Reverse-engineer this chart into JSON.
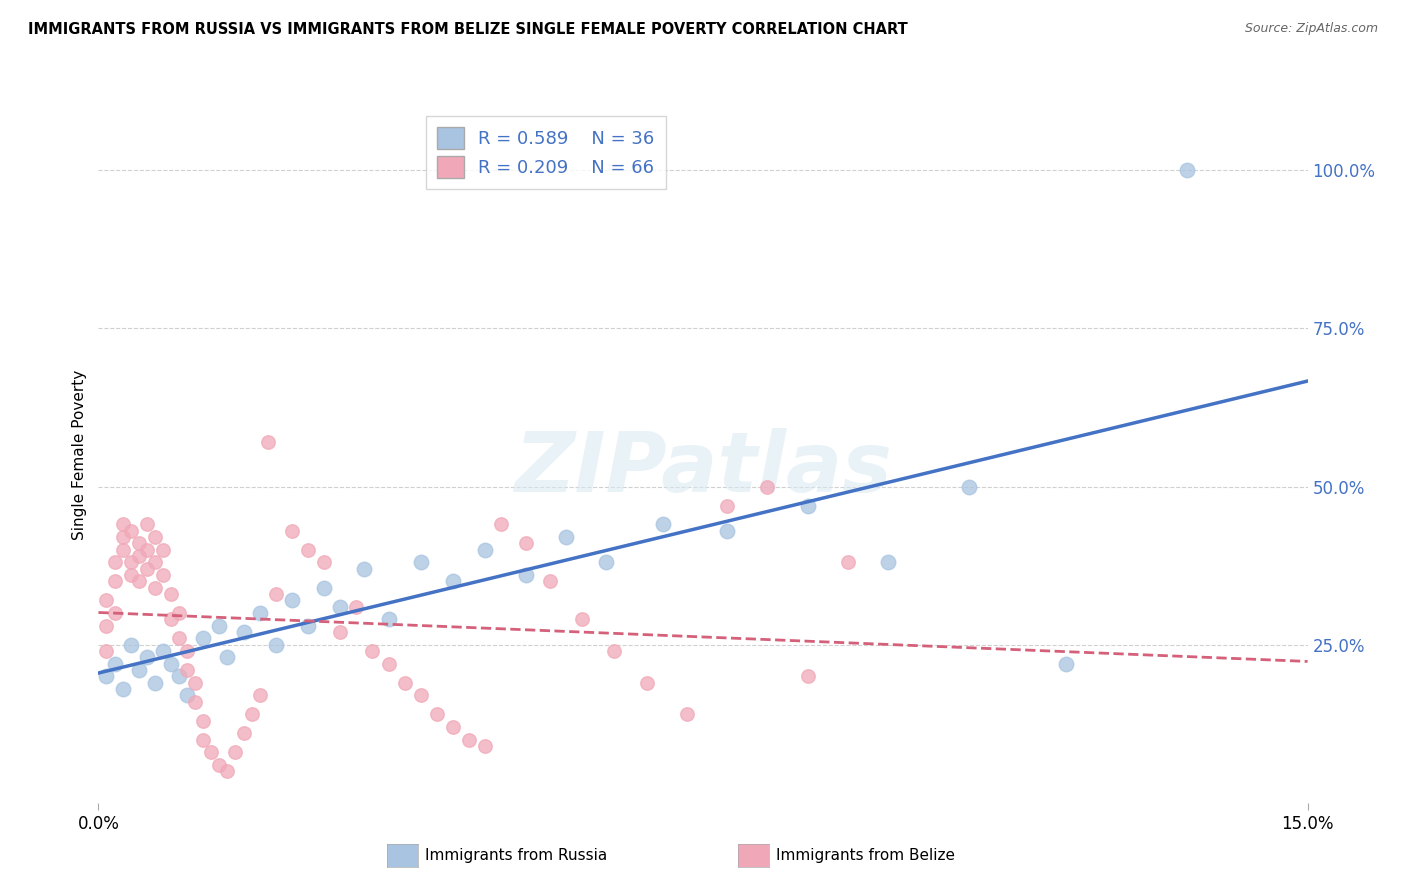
{
  "title": "IMMIGRANTS FROM RUSSIA VS IMMIGRANTS FROM BELIZE SINGLE FEMALE POVERTY CORRELATION CHART",
  "source": "Source: ZipAtlas.com",
  "ylabel": "Single Female Poverty",
  "legend_r_russia": "R = 0.589",
  "legend_n_russia": "N = 36",
  "legend_r_belize": "R = 0.209",
  "legend_n_belize": "N = 66",
  "legend_label_russia": "Immigrants from Russia",
  "legend_label_belize": "Immigrants from Belize",
  "russia_color": "#a8c4e0",
  "belize_color": "#f0a8b8",
  "russia_line_color": "#4472c4",
  "belize_line_color": "#d4607a",
  "right_tick_color": "#4472c4",
  "watermark": "ZIPatlas",
  "xlim": [
    0.0,
    0.15
  ],
  "ylim": [
    0.0,
    1.1
  ],
  "russia_x": [
    0.001,
    0.002,
    0.003,
    0.004,
    0.005,
    0.006,
    0.007,
    0.008,
    0.009,
    0.01,
    0.011,
    0.013,
    0.015,
    0.016,
    0.018,
    0.02,
    0.022,
    0.024,
    0.026,
    0.028,
    0.03,
    0.033,
    0.036,
    0.04,
    0.044,
    0.048,
    0.053,
    0.058,
    0.063,
    0.07,
    0.078,
    0.088,
    0.098,
    0.108,
    0.12,
    0.135
  ],
  "russia_y": [
    0.2,
    0.22,
    0.18,
    0.25,
    0.21,
    0.23,
    0.19,
    0.24,
    0.22,
    0.2,
    0.17,
    0.26,
    0.28,
    0.23,
    0.27,
    0.3,
    0.25,
    0.32,
    0.28,
    0.34,
    0.31,
    0.37,
    0.29,
    0.38,
    0.35,
    0.4,
    0.36,
    0.42,
    0.38,
    0.44,
    0.43,
    0.47,
    0.38,
    0.5,
    0.22,
    1.0
  ],
  "belize_x": [
    0.001,
    0.001,
    0.001,
    0.002,
    0.002,
    0.002,
    0.003,
    0.003,
    0.003,
    0.004,
    0.004,
    0.004,
    0.005,
    0.005,
    0.005,
    0.006,
    0.006,
    0.006,
    0.007,
    0.007,
    0.007,
    0.008,
    0.008,
    0.009,
    0.009,
    0.01,
    0.01,
    0.011,
    0.011,
    0.012,
    0.012,
    0.013,
    0.013,
    0.014,
    0.015,
    0.016,
    0.017,
    0.018,
    0.019,
    0.02,
    0.021,
    0.022,
    0.024,
    0.026,
    0.028,
    0.03,
    0.032,
    0.034,
    0.036,
    0.038,
    0.04,
    0.042,
    0.044,
    0.046,
    0.048,
    0.05,
    0.053,
    0.056,
    0.06,
    0.064,
    0.068,
    0.073,
    0.078,
    0.083,
    0.088,
    0.093
  ],
  "belize_y": [
    0.24,
    0.28,
    0.32,
    0.3,
    0.35,
    0.38,
    0.4,
    0.44,
    0.42,
    0.43,
    0.38,
    0.36,
    0.41,
    0.39,
    0.35,
    0.44,
    0.4,
    0.37,
    0.42,
    0.38,
    0.34,
    0.4,
    0.36,
    0.33,
    0.29,
    0.3,
    0.26,
    0.24,
    0.21,
    0.19,
    0.16,
    0.13,
    0.1,
    0.08,
    0.06,
    0.05,
    0.08,
    0.11,
    0.14,
    0.17,
    0.57,
    0.33,
    0.43,
    0.4,
    0.38,
    0.27,
    0.31,
    0.24,
    0.22,
    0.19,
    0.17,
    0.14,
    0.12,
    0.1,
    0.09,
    0.44,
    0.41,
    0.35,
    0.29,
    0.24,
    0.19,
    0.14,
    0.47,
    0.5,
    0.2,
    0.38
  ]
}
